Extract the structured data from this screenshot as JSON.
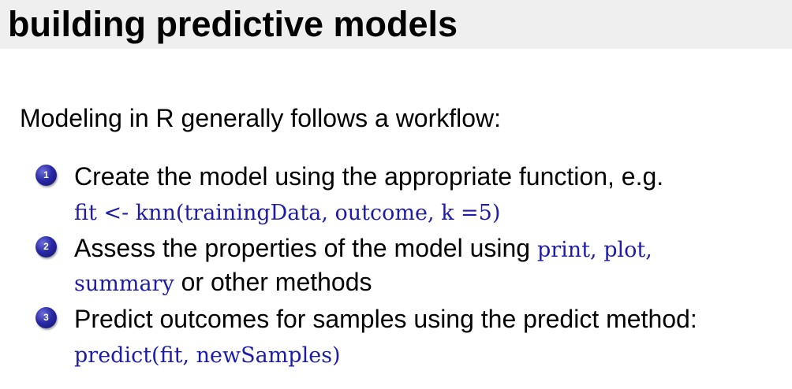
{
  "slide": {
    "title": "building predictive models",
    "intro": "Modeling in R generally follows a workflow:",
    "steps": [
      {
        "number": "1",
        "text": "Create the model using the appropriate function, e.g.",
        "code": "fit <- knn(trainingData, outcome, k =5)"
      },
      {
        "number": "2",
        "text": "Assess the properties of the model using",
        "code_inline": "print, plot,",
        "code_line2": "summary",
        "text_line2": " or other methods"
      },
      {
        "number": "3",
        "text": "Predict outcomes for samples using the predict method:",
        "code": "predict(fit, newSamples)"
      }
    ]
  },
  "colors": {
    "title_background": "#efefef",
    "code_text": "#1c1ca8",
    "bullet": "#2a2aa6"
  }
}
